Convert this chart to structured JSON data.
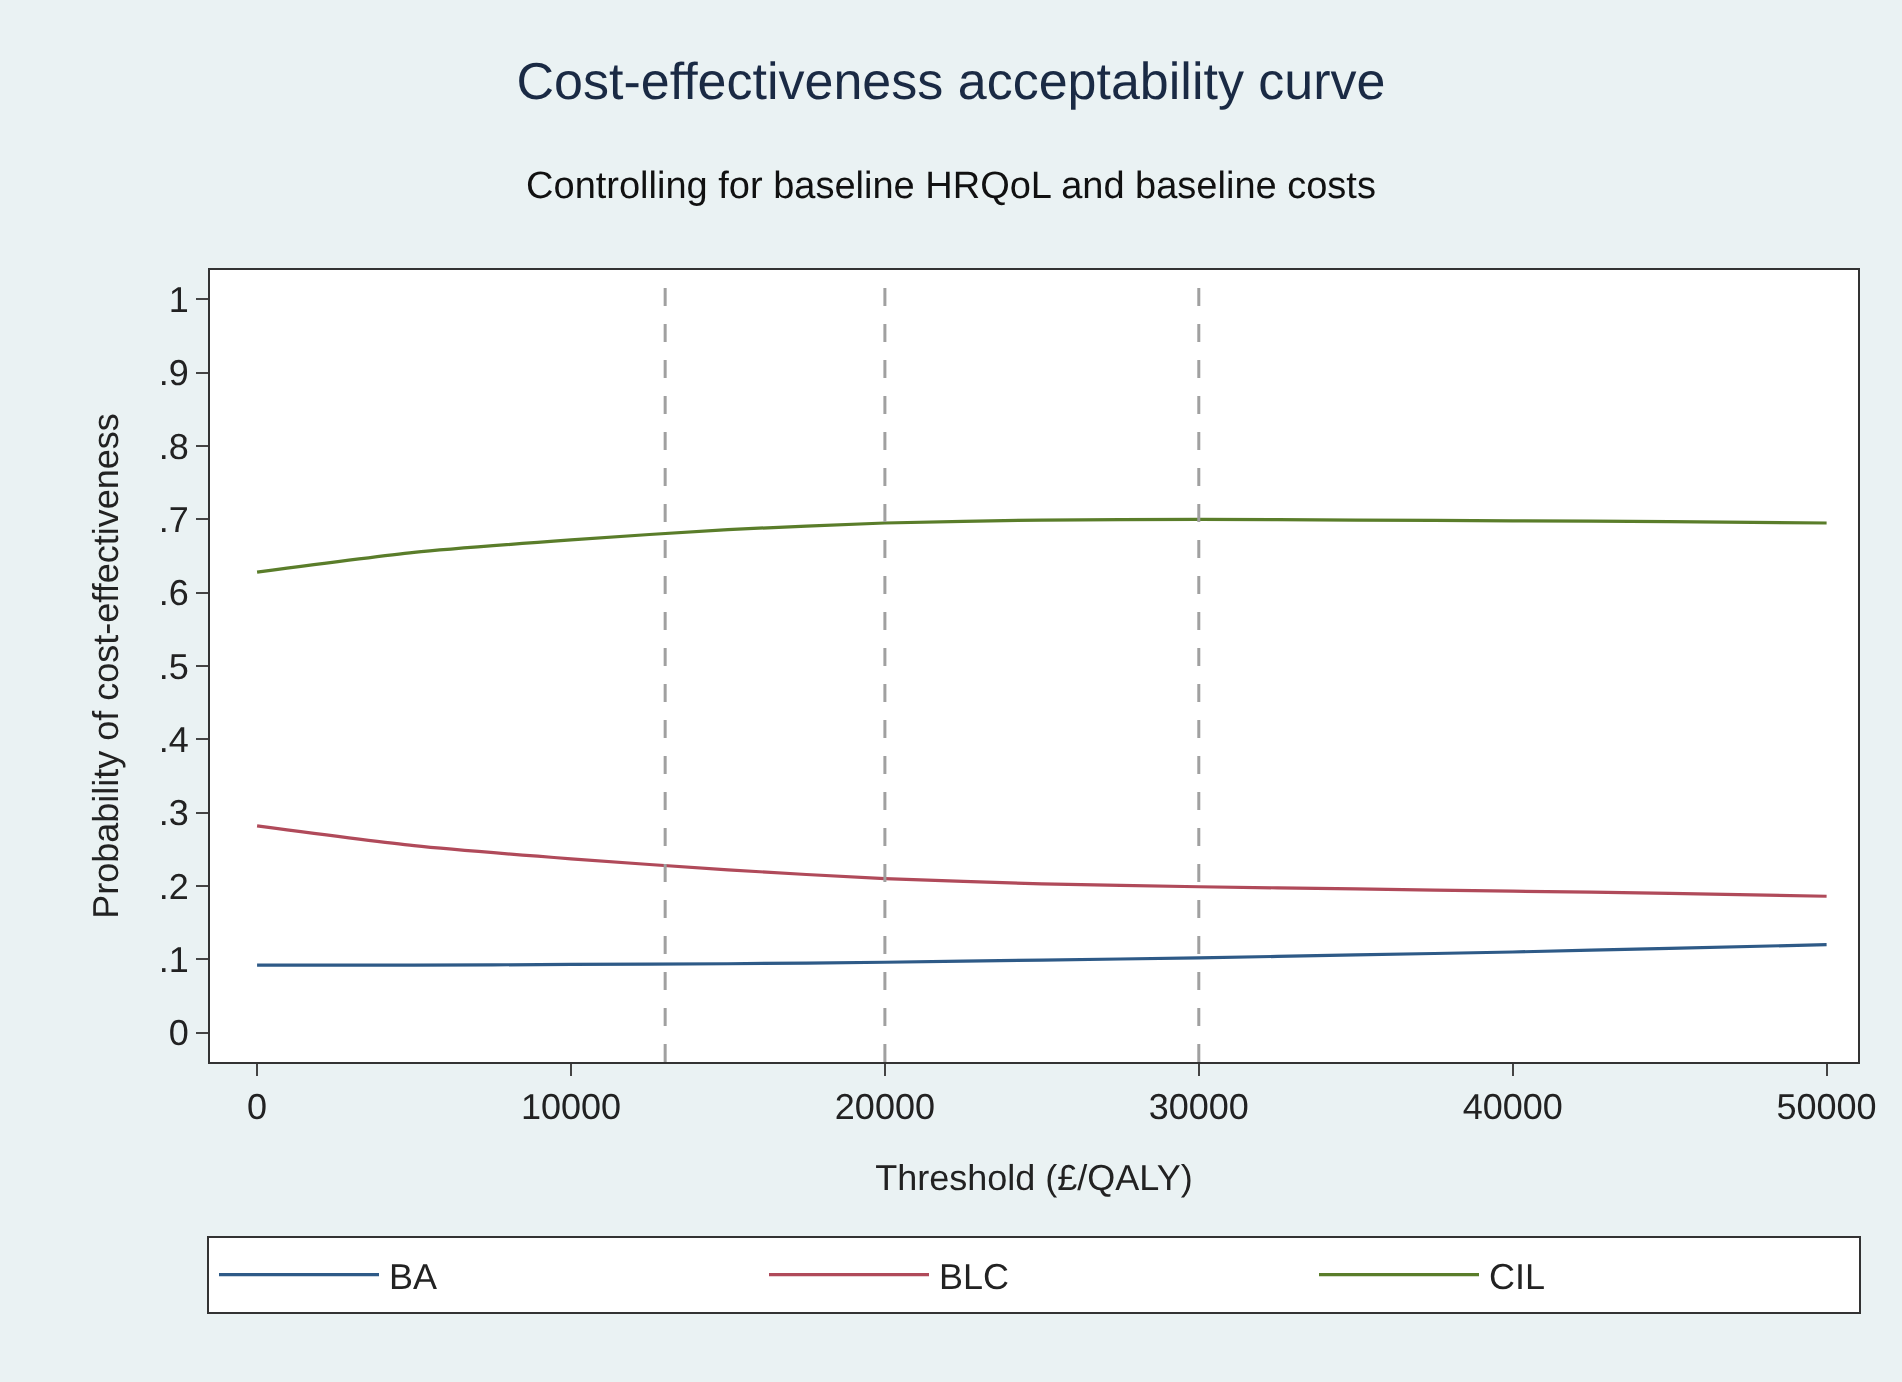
{
  "chart_data": {
    "type": "line",
    "title": "Cost-effectiveness acceptability curve",
    "subtitle": "Controlling for baseline HRQoL and baseline costs",
    "xlabel": "Threshold (£/QALY)",
    "ylabel": "Probability of cost-effectiveness",
    "x": [
      0,
      5000,
      10000,
      15000,
      20000,
      25000,
      30000,
      35000,
      40000,
      45000,
      50000
    ],
    "series": [
      {
        "name": "BA",
        "color": "#2e5a87",
        "values": [
          0.092,
          0.092,
          0.093,
          0.094,
          0.096,
          0.099,
          0.102,
          0.106,
          0.11,
          0.115,
          0.12
        ]
      },
      {
        "name": "BLC",
        "color": "#b04a5a",
        "values": [
          0.282,
          0.255,
          0.237,
          0.222,
          0.21,
          0.203,
          0.199,
          0.196,
          0.193,
          0.19,
          0.186
        ]
      },
      {
        "name": "CIL",
        "color": "#5a7d2a",
        "values": [
          0.628,
          0.655,
          0.672,
          0.686,
          0.695,
          0.699,
          0.7,
          0.699,
          0.698,
          0.697,
          0.695
        ]
      }
    ],
    "xlim": [
      -1500,
      51000
    ],
    "xticks": [
      0,
      10000,
      20000,
      30000,
      40000,
      50000
    ],
    "ylim": [
      -0.04,
      1.04
    ],
    "yticks": [
      0,
      {
        "value": 0.1,
        "label": ".1"
      },
      {
        "value": 0.2,
        "label": ".2"
      },
      {
        "value": 0.3,
        "label": ".3"
      },
      {
        "value": 0.4,
        "label": ".4"
      },
      {
        "value": 0.5,
        "label": ".5"
      },
      {
        "value": 0.6,
        "label": ".6"
      },
      {
        "value": 0.7,
        "label": ".7"
      },
      {
        "value": 0.8,
        "label": ".8"
      },
      {
        "value": 0.9,
        "label": ".9"
      },
      1
    ],
    "ref_lines": [
      {
        "axis": "x",
        "value": 13000,
        "color": "#a0a0a0",
        "line_style": "dashed"
      },
      {
        "axis": "x",
        "value": 20000,
        "color": "#a0a0a0",
        "line_style": "dashed"
      },
      {
        "axis": "x",
        "value": 30000,
        "color": "#a0a0a0",
        "line_style": "dashed"
      }
    ],
    "grid": false,
    "legend": "bottom",
    "marker": "none",
    "line_style": "solid"
  }
}
